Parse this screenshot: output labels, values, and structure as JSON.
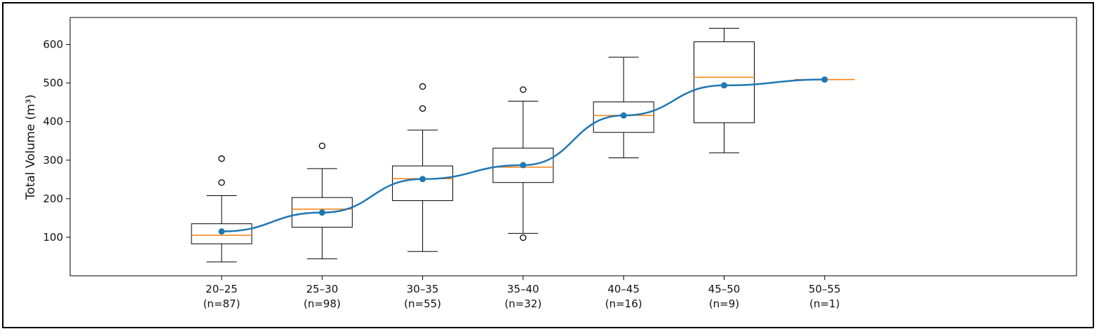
{
  "chart_data": {
    "type": "box",
    "ylabel": "Total Volume (m³)",
    "xlabel": "",
    "ylim": [
      0,
      670
    ],
    "yticks": [
      100,
      200,
      300,
      400,
      500,
      600
    ],
    "grid": false,
    "categories": [
      "20–25",
      "25–30",
      "30–35",
      "35–40",
      "40–45",
      "45–50",
      "50–55"
    ],
    "counts": [
      "(n=87)",
      "(n=98)",
      "(n=55)",
      "(n=32)",
      "(n=16)",
      "(n=9)",
      "(n=1)"
    ],
    "boxes": [
      {
        "whisker_low": 36,
        "q1": 83,
        "median": 105,
        "q3": 135,
        "whisker_high": 208,
        "outliers": [
          242,
          304
        ]
      },
      {
        "whisker_low": 44,
        "q1": 126,
        "median": 173,
        "q3": 203,
        "whisker_high": 278,
        "outliers": [
          337
        ]
      },
      {
        "whisker_low": 63,
        "q1": 195,
        "median": 252,
        "q3": 285,
        "whisker_high": 378,
        "outliers": [
          434,
          491
        ]
      },
      {
        "whisker_low": 110,
        "q1": 242,
        "median": 282,
        "q3": 331,
        "whisker_high": 453,
        "outliers": [
          99,
          483
        ]
      },
      {
        "whisker_low": 306,
        "q1": 372,
        "median": 416,
        "q3": 451,
        "whisker_high": 567,
        "outliers": []
      },
      {
        "whisker_low": 319,
        "q1": 397,
        "median": 515,
        "q3": 607,
        "whisker_high": 642,
        "outliers": []
      },
      {
        "whisker_low": 509,
        "q1": 509,
        "median": 509,
        "q3": 509,
        "whisker_high": 509,
        "outliers": []
      }
    ],
    "mean_line": {
      "values": [
        115,
        164,
        251,
        287,
        416,
        494,
        509
      ]
    },
    "colors": {
      "box": "#000000",
      "median": "#ff7f0e",
      "mean": "#1f77b4"
    }
  }
}
